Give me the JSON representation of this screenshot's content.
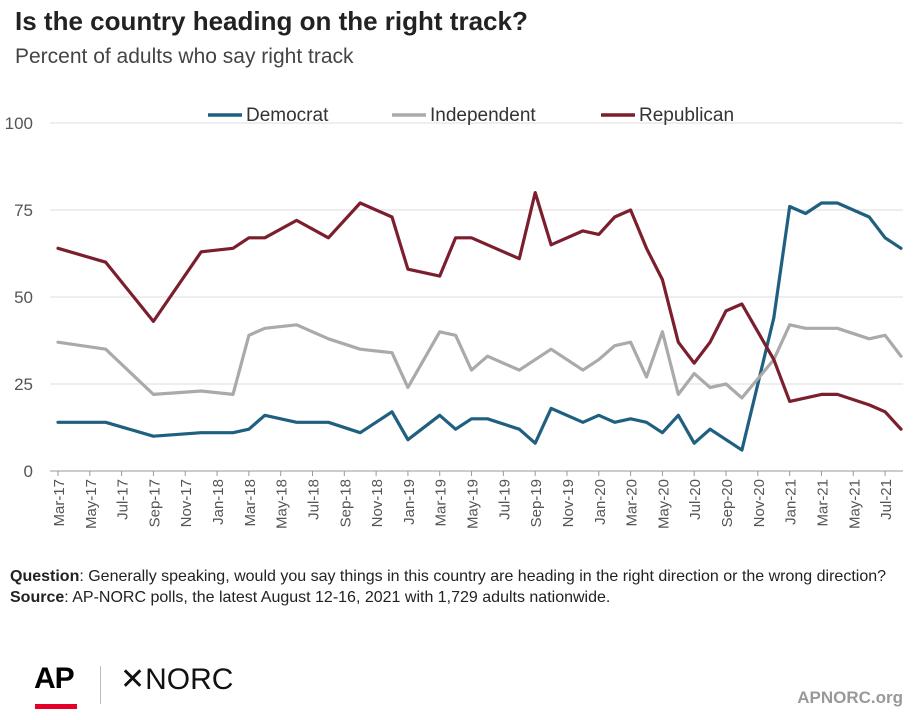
{
  "header": {
    "title": "Is the country heading on the right track?",
    "subtitle": "Percent of adults who say right track"
  },
  "notes": {
    "question_label": "Question",
    "question_text": ": Generally speaking, would you say things in this country are heading in the right direction or the wrong direction?",
    "source_label": "Source",
    "source_text": ": AP-NORC polls, the latest  August 12-16, 2021 with 1,729 adults nationwide."
  },
  "footer": {
    "ap_logo": "AP",
    "norc_logo": "✕NORC",
    "site": "APNORC.org"
  },
  "chart_data": {
    "type": "line",
    "ylim": [
      0,
      100
    ],
    "yticks": [
      0,
      25,
      50,
      75,
      100
    ],
    "xlim": [
      "2017-03",
      "2021-08"
    ],
    "x_tick_labels": [
      "Mar-17",
      "May-17",
      "Jul-17",
      "Sep-17",
      "Nov-17",
      "Jan-18",
      "Mar-18",
      "May-18",
      "Jul-18",
      "Sep-18",
      "Nov-18",
      "Jan-19",
      "Mar-19",
      "May-19",
      "Jul-19",
      "Sep-19",
      "Nov-19",
      "Jan-20",
      "Mar-20",
      "May-20",
      "Jul-20",
      "Sep-20",
      "Nov-20",
      "Jan-21",
      "Mar-21",
      "May-21",
      "Jul-21"
    ],
    "grid": "horizontal",
    "legend_position": "top",
    "series": [
      {
        "name": "Democrat",
        "color": "#1f5f7f",
        "points": [
          [
            "2017-03",
            14
          ],
          [
            "2017-06",
            14
          ],
          [
            "2017-09",
            10
          ],
          [
            "2017-12",
            11
          ],
          [
            "2018-02",
            11
          ],
          [
            "2018-03",
            12
          ],
          [
            "2018-04",
            16
          ],
          [
            "2018-06",
            14
          ],
          [
            "2018-08",
            14
          ],
          [
            "2018-10",
            11
          ],
          [
            "2018-12",
            17
          ],
          [
            "2019-01",
            9
          ],
          [
            "2019-03",
            16
          ],
          [
            "2019-04",
            12
          ],
          [
            "2019-05",
            15
          ],
          [
            "2019-06",
            15
          ],
          [
            "2019-08",
            12
          ],
          [
            "2019-09",
            8
          ],
          [
            "2019-10",
            18
          ],
          [
            "2019-12",
            14
          ],
          [
            "2020-01",
            16
          ],
          [
            "2020-02",
            14
          ],
          [
            "2020-03",
            15
          ],
          [
            "2020-04",
            14
          ],
          [
            "2020-05",
            11
          ],
          [
            "2020-06",
            16
          ],
          [
            "2020-07",
            8
          ],
          [
            "2020-08",
            12
          ],
          [
            "2020-10",
            6
          ],
          [
            "2020-12",
            44
          ],
          [
            "2021-01",
            76
          ],
          [
            "2021-02",
            74
          ],
          [
            "2021-03",
            77
          ],
          [
            "2021-04",
            77
          ],
          [
            "2021-06",
            73
          ],
          [
            "2021-07",
            67
          ],
          [
            "2021-08",
            64
          ]
        ]
      },
      {
        "name": "Independent",
        "color": "#aaaaaa",
        "points": [
          [
            "2017-03",
            37
          ],
          [
            "2017-06",
            35
          ],
          [
            "2017-09",
            22
          ],
          [
            "2017-12",
            23
          ],
          [
            "2018-02",
            22
          ],
          [
            "2018-03",
            39
          ],
          [
            "2018-04",
            41
          ],
          [
            "2018-06",
            42
          ],
          [
            "2018-08",
            38
          ],
          [
            "2018-10",
            35
          ],
          [
            "2018-12",
            34
          ],
          [
            "2019-01",
            24
          ],
          [
            "2019-03",
            40
          ],
          [
            "2019-04",
            39
          ],
          [
            "2019-05",
            29
          ],
          [
            "2019-06",
            33
          ],
          [
            "2019-08",
            29
          ],
          [
            "2019-10",
            35
          ],
          [
            "2019-12",
            29
          ],
          [
            "2020-01",
            32
          ],
          [
            "2020-02",
            36
          ],
          [
            "2020-03",
            37
          ],
          [
            "2020-04",
            27
          ],
          [
            "2020-05",
            40
          ],
          [
            "2020-06",
            22
          ],
          [
            "2020-07",
            28
          ],
          [
            "2020-08",
            24
          ],
          [
            "2020-09",
            25
          ],
          [
            "2020-10",
            21
          ],
          [
            "2020-12",
            32
          ],
          [
            "2021-01",
            42
          ],
          [
            "2021-02",
            41
          ],
          [
            "2021-04",
            41
          ],
          [
            "2021-06",
            38
          ],
          [
            "2021-07",
            39
          ],
          [
            "2021-08",
            33
          ]
        ]
      },
      {
        "name": "Republican",
        "color": "#7b1f2e",
        "points": [
          [
            "2017-03",
            64
          ],
          [
            "2017-06",
            60
          ],
          [
            "2017-09",
            43
          ],
          [
            "2017-12",
            63
          ],
          [
            "2018-02",
            64
          ],
          [
            "2018-03",
            67
          ],
          [
            "2018-04",
            67
          ],
          [
            "2018-06",
            72
          ],
          [
            "2018-08",
            67
          ],
          [
            "2018-10",
            77
          ],
          [
            "2018-12",
            73
          ],
          [
            "2019-01",
            58
          ],
          [
            "2019-03",
            56
          ],
          [
            "2019-04",
            67
          ],
          [
            "2019-05",
            67
          ],
          [
            "2019-08",
            61
          ],
          [
            "2019-09",
            80
          ],
          [
            "2019-10",
            65
          ],
          [
            "2019-12",
            69
          ],
          [
            "2020-01",
            68
          ],
          [
            "2020-02",
            73
          ],
          [
            "2020-03",
            75
          ],
          [
            "2020-04",
            64
          ],
          [
            "2020-05",
            55
          ],
          [
            "2020-06",
            37
          ],
          [
            "2020-07",
            31
          ],
          [
            "2020-08",
            37
          ],
          [
            "2020-09",
            46
          ],
          [
            "2020-10",
            48
          ],
          [
            "2020-12",
            32
          ],
          [
            "2021-01",
            20
          ],
          [
            "2021-02",
            21
          ],
          [
            "2021-03",
            22
          ],
          [
            "2021-04",
            22
          ],
          [
            "2021-06",
            19
          ],
          [
            "2021-07",
            17
          ],
          [
            "2021-08",
            12
          ]
        ]
      }
    ]
  }
}
